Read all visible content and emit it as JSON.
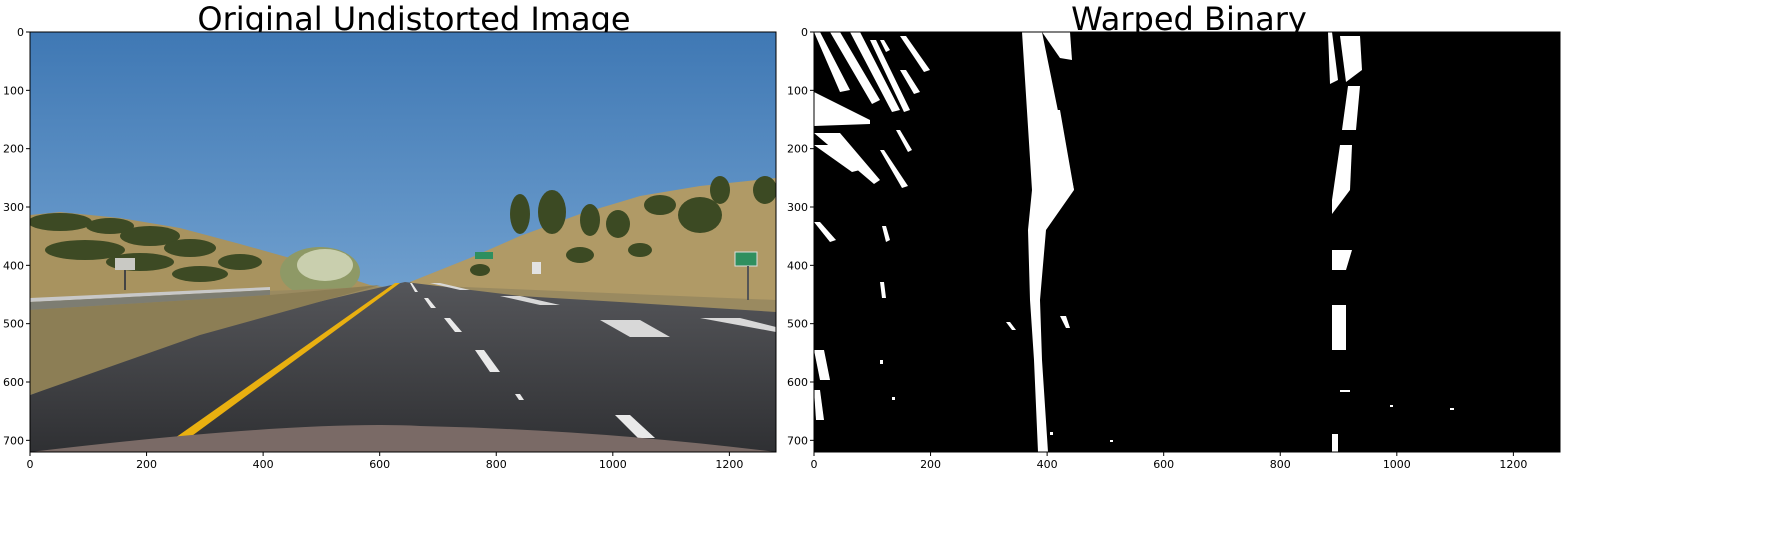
{
  "figure": {
    "left": {
      "title": "Original Undistorted Image",
      "x_ticks": [
        0,
        200,
        400,
        600,
        800,
        1000,
        1200
      ],
      "y_ticks": [
        0,
        100,
        200,
        300,
        400,
        500,
        600,
        700
      ],
      "x_range": [
        0,
        1280
      ],
      "y_range": [
        0,
        720
      ]
    },
    "right": {
      "title": "Warped Binary",
      "x_ticks": [
        0,
        200,
        400,
        600,
        800,
        1000,
        1200
      ],
      "y_ticks": [
        0,
        100,
        200,
        300,
        400,
        500,
        600,
        700
      ],
      "x_range": [
        0,
        1280
      ],
      "y_range": [
        0,
        720
      ]
    }
  },
  "colors": {
    "sky_top": "#3f78b4",
    "sky_horizon": "#9ec3e0",
    "hills": "#a08a5a",
    "vegetation": "#3e4a25",
    "road": "#3a3a3e",
    "lane_yellow": "#f0b400",
    "lane_white": "#ffffff",
    "binary_bg": "#000000",
    "binary_fg": "#ffffff"
  },
  "lane_lines": {
    "left_x_bottom": 410,
    "left_x_top": 400,
    "right_x_bottom": 925,
    "right_x_top": 935
  }
}
